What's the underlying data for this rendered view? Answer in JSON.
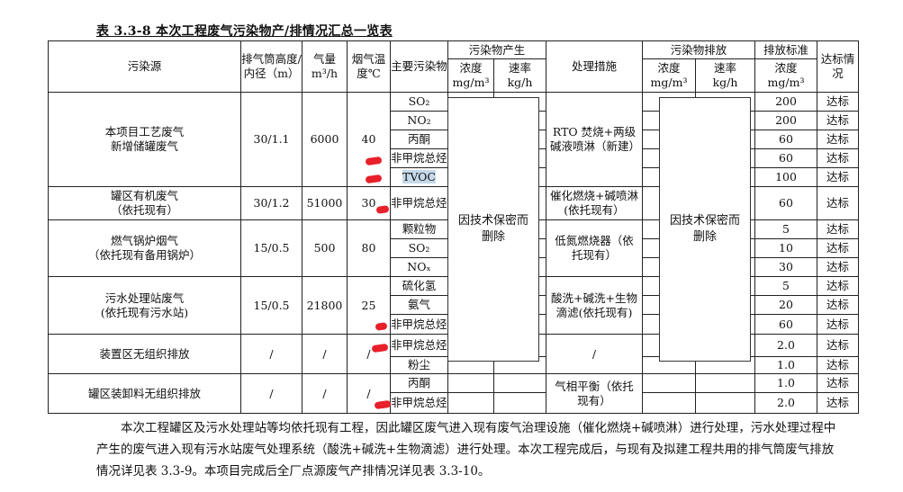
{
  "title": "表 3.3-8  本次工程废气污染物产/排情况汇总一览表",
  "headers": {
    "source": "污染源",
    "stack": "排气筒高度/内径（m）",
    "gas": "气量",
    "gas_unit": "m³/h",
    "temp": "烟气温度℃",
    "pollutant": "主要污染物",
    "production": "污染物产生",
    "treatment": "处理措施",
    "emission": "污染物排放",
    "standard": "排放标准",
    "status": "达标情况",
    "conc": "浓度",
    "conc_unit": "mg/m³",
    "rate": "速率",
    "rate_unit": "kg/h"
  },
  "groups": [
    {
      "source": "本项目工艺废气\n新增储罐废气",
      "stack": "30/1.1",
      "gas": "6000",
      "temp": "40"
    },
    {
      "source": "罐区有机废气\n（依托现有）",
      "stack": "30/1.2",
      "gas": "51000",
      "temp": "30"
    },
    {
      "source": "燃气锅炉烟气\n（依托现有备用锅炉）",
      "stack": "15/0.5",
      "gas": "500",
      "temp": "80"
    },
    {
      "source": "污水处理站废气\n(依托现有污水站)",
      "stack": "15/0.5",
      "gas": "21800",
      "temp": "25"
    },
    {
      "source": "装置区无组织排放",
      "stack": "/",
      "gas": "/",
      "temp": "/"
    },
    {
      "source": "罐区装卸料无组织排放",
      "stack": "/",
      "gas": "/",
      "temp": "/"
    }
  ],
  "treatments": [
    "RTO 焚烧+两级碱液喷淋（新建）",
    "催化燃烧+碱喷淋(依托现有）",
    "低氮燃烧器（依托现有）",
    "酸洗+碱洗+生物滴滤(依托现有)",
    "/",
    "气相平衡（依托现有）"
  ],
  "rows": [
    {
      "pollutant": "SO₂",
      "standard": "200",
      "status": "达标"
    },
    {
      "pollutant": "NO₂",
      "standard": "200",
      "status": "达标"
    },
    {
      "pollutant": "丙酮",
      "standard": "60",
      "status": "达标"
    },
    {
      "pollutant": "非甲烷总烃",
      "standard": "60",
      "status": "达标"
    },
    {
      "pollutant": "TVOC",
      "standard": "100",
      "status": "达标"
    },
    {
      "pollutant": "非甲烷总烃",
      "standard": "60",
      "status": "达标"
    },
    {
      "pollutant": "颗粒物",
      "standard": "5",
      "status": "达标"
    },
    {
      "pollutant": "SO₂",
      "standard": "10",
      "status": "达标"
    },
    {
      "pollutant": "NOₓ",
      "standard": "30",
      "status": "达标"
    },
    {
      "pollutant": "硫化氢",
      "standard": "5",
      "status": "达标"
    },
    {
      "pollutant": "氨气",
      "standard": "20",
      "status": "达标"
    },
    {
      "pollutant": "非甲烷总烃",
      "standard": "60",
      "status": "达标"
    },
    {
      "pollutant": "非甲烷总烃",
      "standard": "2.0",
      "status": "达标"
    },
    {
      "pollutant": "粉尘",
      "standard": "1.0",
      "status": "达标"
    },
    {
      "pollutant": "丙酮",
      "standard": "1.0",
      "status": "达标"
    },
    {
      "pollutant": "非甲烷总烃",
      "standard": "2.0",
      "status": "达标"
    }
  ],
  "redacted_note": "因技术保密而删除",
  "paragraph": "本次工程罐区及污水处理站等均依托现有工程，因此罐区废气进入现有废气治理设施（催化燃烧+碱喷淋）进行处理，污水处理过程中产生的废气进入现有污水站废气处理系统（酸洗+碱洗+生物滴滤）进行处理。本次工程完成后，与现有及拟建工程共用的排气筒废气排放情况详见表 3.3-9。本项目完成后全厂点源废气产排情况详见表 3.3-10。"
}
